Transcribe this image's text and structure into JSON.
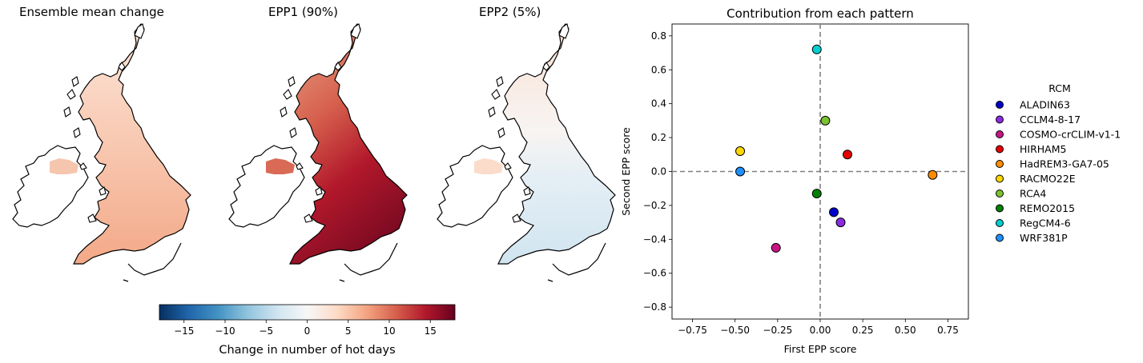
{
  "maps": [
    {
      "title": "Ensemble mean change",
      "style": "mean"
    },
    {
      "title": "EPP1 (90%)",
      "style": "epp1"
    },
    {
      "title": "EPP2 (5%)",
      "style": "epp2"
    }
  ],
  "colorbar": {
    "label": "Change in number of hot days",
    "range": [
      -18,
      18
    ],
    "ticks": [
      "−15",
      "−10",
      "−5",
      "0",
      "5",
      "10",
      "15"
    ],
    "tick_values": [
      -15,
      -10,
      -5,
      0,
      5,
      10,
      15
    ],
    "colormap": "RdBu_r"
  },
  "chart_data": {
    "type": "scatter",
    "title": "Contribution from each pattern",
    "xlabel": "First EPP score",
    "ylabel": "Second EPP score",
    "xlim": [
      -0.87,
      0.87
    ],
    "ylim": [
      -0.87,
      0.87
    ],
    "xticks": [
      -0.75,
      -0.5,
      -0.25,
      0.0,
      0.25,
      0.5,
      0.75
    ],
    "xtick_labels": [
      "−0.75",
      "−0.50",
      "−0.25",
      "0.00",
      "0.25",
      "0.50",
      "0.75"
    ],
    "yticks": [
      -0.8,
      -0.6,
      -0.4,
      -0.2,
      0.0,
      0.2,
      0.4,
      0.6,
      0.8
    ],
    "ytick_labels": [
      "−0.8",
      "−0.6",
      "−0.4",
      "−0.2",
      "0.0",
      "0.2",
      "0.4",
      "0.6",
      "0.8"
    ],
    "reference_lines": {
      "x": 0,
      "y": 0,
      "style": "dashed"
    },
    "legend": {
      "title": "RCM",
      "placement": "outside-right"
    },
    "series": [
      {
        "name": "ALADIN63",
        "x": 0.08,
        "y": -0.24,
        "color": "#0000cc"
      },
      {
        "name": "CCLM4-8-17",
        "x": 0.12,
        "y": -0.3,
        "color": "#8a2be2"
      },
      {
        "name": "COSMO-crCLIM-v1-1",
        "x": -0.26,
        "y": -0.45,
        "color": "#c71585"
      },
      {
        "name": "HIRHAM5",
        "x": 0.16,
        "y": 0.1,
        "color": "#e60000"
      },
      {
        "name": "HadREM3-GA7-05",
        "x": 0.66,
        "y": -0.02,
        "color": "#ff8c00"
      },
      {
        "name": "RACMO22E",
        "x": -0.47,
        "y": 0.12,
        "color": "#ffd700"
      },
      {
        "name": "RCA4",
        "x": 0.03,
        "y": 0.3,
        "color": "#7cc232"
      },
      {
        "name": "REMO2015",
        "x": -0.02,
        "y": -0.13,
        "color": "#008000"
      },
      {
        "name": "RegCM4-6",
        "x": -0.02,
        "y": 0.72,
        "color": "#00ced1"
      },
      {
        "name": "WRF381P",
        "x": -0.47,
        "y": 0.0,
        "color": "#1e90ff"
      }
    ]
  }
}
